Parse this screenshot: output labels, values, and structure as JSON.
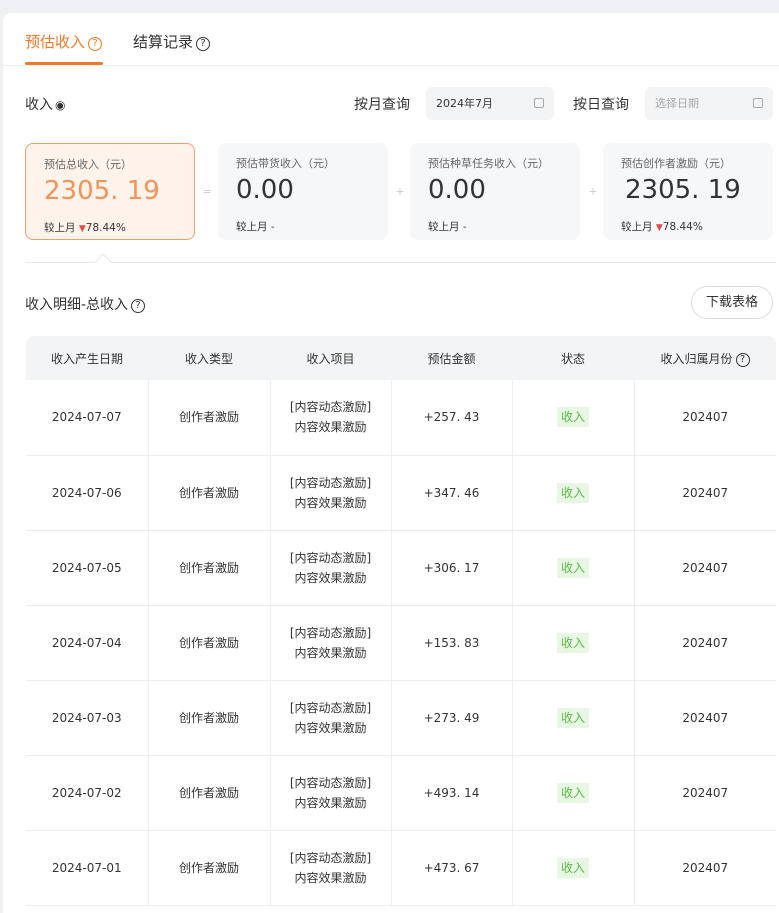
{
  "tabs": [
    {
      "label": "预估收入",
      "active": true
    },
    {
      "label": "结算记录",
      "active": false
    }
  ],
  "income_label": "收入",
  "month_query": {
    "label": "按月查询",
    "value": "2024年7月"
  },
  "day_query": {
    "label": "按日查询",
    "placeholder": "选择日期"
  },
  "cards": [
    {
      "title": "预估总收入（元）",
      "value": "2305. 19",
      "compare_label": "较上月",
      "change": "78.44%",
      "trend": "down"
    },
    {
      "title": "预估带货收入（元）",
      "value": "0.00",
      "compare_label": "较上月",
      "change": "-"
    },
    {
      "title": "预估种草任务收入（元）",
      "value": "0.00",
      "compare_label": "较上月",
      "change": "-"
    },
    {
      "title": "预估创作者激励（元）",
      "value": "2305. 19",
      "compare_label": "较上月",
      "change": "78.44%",
      "trend": "down"
    }
  ],
  "operators": [
    "=",
    "+",
    "+"
  ],
  "detail": {
    "title": "收入明细-总收入",
    "download_label": "下载表格"
  },
  "table": {
    "headers": [
      "收入产生日期",
      "收入类型",
      "收入项目",
      "预估金额",
      "状态",
      "收入归属月份"
    ],
    "rows": [
      [
        "2024-07-07",
        "创作者激励",
        "[内容动态激励]",
        "内容效果激励",
        "+257. 43",
        "收入",
        "202407"
      ],
      [
        "2024-07-06",
        "创作者激励",
        "[内容动态激励]",
        "内容效果激励",
        "+347. 46",
        "收入",
        "202407"
      ],
      [
        "2024-07-05",
        "创作者激励",
        "[内容动态激励]",
        "内容效果激励",
        "+306. 17",
        "收入",
        "202407"
      ],
      [
        "2024-07-04",
        "创作者激励",
        "[内容动态激励]",
        "内容效果激励",
        "+153. 83",
        "收入",
        "202407"
      ],
      [
        "2024-07-03",
        "创作者激励",
        "[内容动态激励]",
        "内容效果激励",
        "+273. 49",
        "收入",
        "202407"
      ],
      [
        "2024-07-02",
        "创作者激励",
        "[内容动态激励]",
        "内容效果激励",
        "+493. 14",
        "收入",
        "202407"
      ],
      [
        "2024-07-01",
        "创作者激励",
        "[内容动态激励]",
        "内容效果激励",
        "+473. 67",
        "收入",
        "202407"
      ]
    ]
  },
  "colors": {
    "accent": "#f07a2a",
    "status_green": "#5dbb49",
    "down_red": "#e34b4b"
  }
}
